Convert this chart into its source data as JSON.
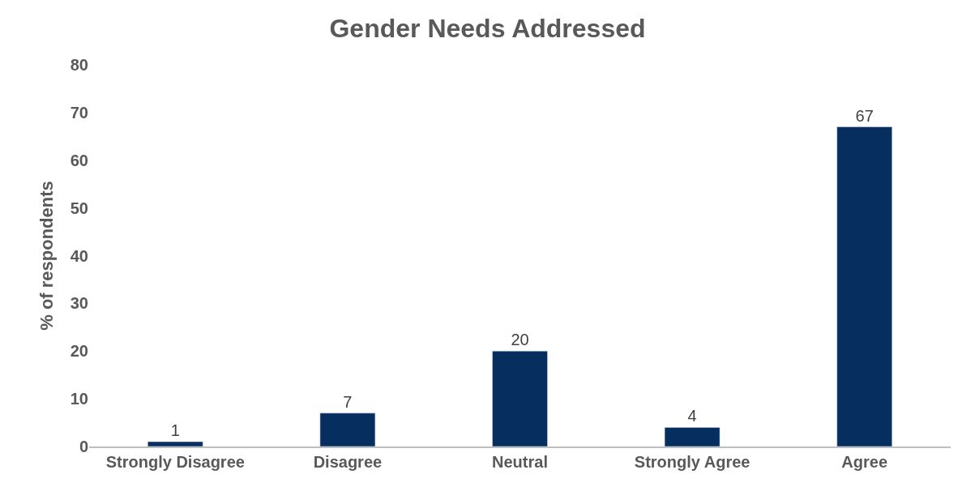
{
  "chart_data": {
    "type": "bar",
    "title": "Gender Needs Addressed",
    "ylabel": "% of respondents",
    "categories": [
      "Strongly Disagree",
      "Disagree",
      "Neutral",
      "Strongly Agree",
      "Agree"
    ],
    "values": [
      1,
      7,
      20,
      4,
      67
    ],
    "color": "#062f5f",
    "ylim": [
      0,
      80
    ],
    "yticks": [
      0,
      10,
      20,
      30,
      40,
      50,
      60,
      70,
      80
    ],
    "grid": false,
    "data_labels": true,
    "legend": false
  }
}
